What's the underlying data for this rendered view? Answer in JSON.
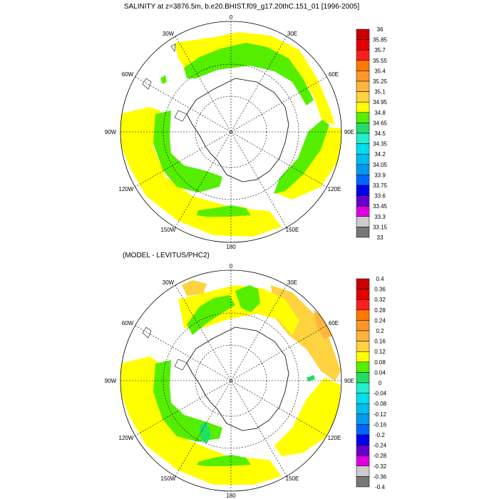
{
  "top_panel": {
    "title": "SALINITY at z=3876.5m, b.e20.BHIST.f09_g17.20thC.151_01 [1996-2005]",
    "lon_labels": {
      "n0": "0",
      "n30e": "30E",
      "n60e": "60E",
      "n90e": "90E",
      "n120e": "120E",
      "n150e": "150E",
      "n180": "180",
      "n150w": "150W",
      "n120w": "120W",
      "n90w": "90W",
      "n60w": "60W",
      "n30w": "30W"
    },
    "legend": {
      "labels": [
        "36",
        "35.85",
        "35.7",
        "35.55",
        "35.4",
        "35.25",
        "35.1",
        "34.95",
        "34.8",
        "34.65",
        "34.5",
        "34.35",
        "34.2",
        "34.05",
        "33.9",
        "33.75",
        "33.6",
        "33.45",
        "33.3",
        "33.15",
        "33"
      ],
      "colors": [
        "#c80000",
        "#e40000",
        "#ff1e1e",
        "#ff7800",
        "#ff9628",
        "#ffb43c",
        "#ffd240",
        "#ffff00",
        "#55ee00",
        "#22dd66",
        "#22eecc",
        "#00ddee",
        "#00bbee",
        "#0099ee",
        "#0066ff",
        "#0000ee",
        "#6600cc",
        "#dd00dd",
        "#cccccc",
        "#777777"
      ]
    }
  },
  "bottom_panel": {
    "title": "(MODEL - LEVITUS/PHC2)",
    "lon_labels": {
      "n0": "0",
      "n30e": "30E",
      "n60e": "60E",
      "n90e": "90E",
      "n120e": "120E",
      "n150e": "150E",
      "n180": "180",
      "n150w": "150W",
      "n120w": "120W",
      "n90w": "90W",
      "n60w": "60W",
      "n30w": "30W"
    },
    "legend": {
      "labels": [
        "0.4",
        "0.36",
        "0.32",
        "0.28",
        "0.24",
        "0.2",
        "0.16",
        "0.12",
        "0.08",
        "0.04",
        "0",
        "-0.04",
        "-0.08",
        "-0.12",
        "-0.16",
        "-0.2",
        "-0.24",
        "-0.28",
        "-0.32",
        "-0.36",
        "-0.4"
      ],
      "colors": [
        "#c80000",
        "#e40000",
        "#ff1e1e",
        "#ff7800",
        "#ff9628",
        "#ffb43c",
        "#ffd240",
        "#ffff00",
        "#55ee00",
        "#22dd66",
        "#22eecc",
        "#00ddee",
        "#00bbee",
        "#0099ee",
        "#0066ff",
        "#0000ee",
        "#6600cc",
        "#dd00dd",
        "#cccccc",
        "#777777"
      ]
    }
  }
}
